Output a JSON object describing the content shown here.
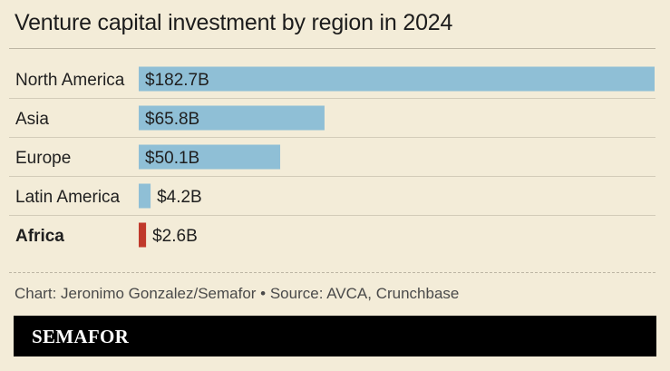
{
  "header": {
    "title": "Venture capital investment by region in 2024"
  },
  "chart_data": {
    "type": "bar",
    "orientation": "horizontal",
    "title": "Venture capital investment by region in 2024",
    "xlabel": "",
    "ylabel": "",
    "categories": [
      "North America",
      "Asia",
      "Europe",
      "Latin America",
      "Africa"
    ],
    "values": [
      182.7,
      65.8,
      50.1,
      4.2,
      2.6
    ],
    "value_labels": [
      "$182.7B",
      "$65.8B",
      "$50.1B",
      "$4.2B",
      "$2.6B"
    ],
    "highlighted": [
      "Africa"
    ],
    "xlim": [
      0,
      182.7
    ],
    "grid": false,
    "colors": {
      "default": "#8fbfd6",
      "highlight": "#c0392b"
    }
  },
  "footer": {
    "source": "Chart: Jeronimo Gonzalez/Semafor • Source: AVCA, Crunchbase",
    "brand": "SEMAFOR"
  }
}
